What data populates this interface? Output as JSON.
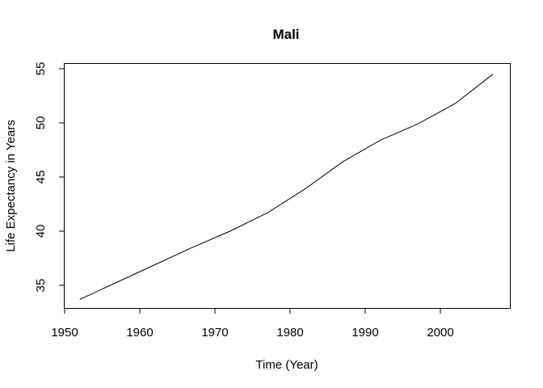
{
  "chart_data": {
    "type": "line",
    "title": "Mali",
    "xlabel": "Time (Year)",
    "ylabel": "Life Expectancy in Years",
    "xlim": [
      1950,
      2007
    ],
    "ylim": [
      32.9,
      55.5
    ],
    "x_ticks": [
      1950,
      1960,
      1970,
      1980,
      1990,
      2000
    ],
    "y_ticks": [
      35,
      40,
      45,
      50,
      55
    ],
    "grid": false,
    "line_color": "#000000",
    "series": [
      {
        "x": [
          1952,
          1957,
          1962,
          1967,
          1972,
          1977,
          1982,
          1987,
          1992,
          1997,
          2002,
          2007
        ],
        "y": [
          33.7,
          35.3,
          36.9,
          38.5,
          40.0,
          41.7,
          43.9,
          46.4,
          48.4,
          49.9,
          51.8,
          54.5
        ]
      }
    ]
  }
}
